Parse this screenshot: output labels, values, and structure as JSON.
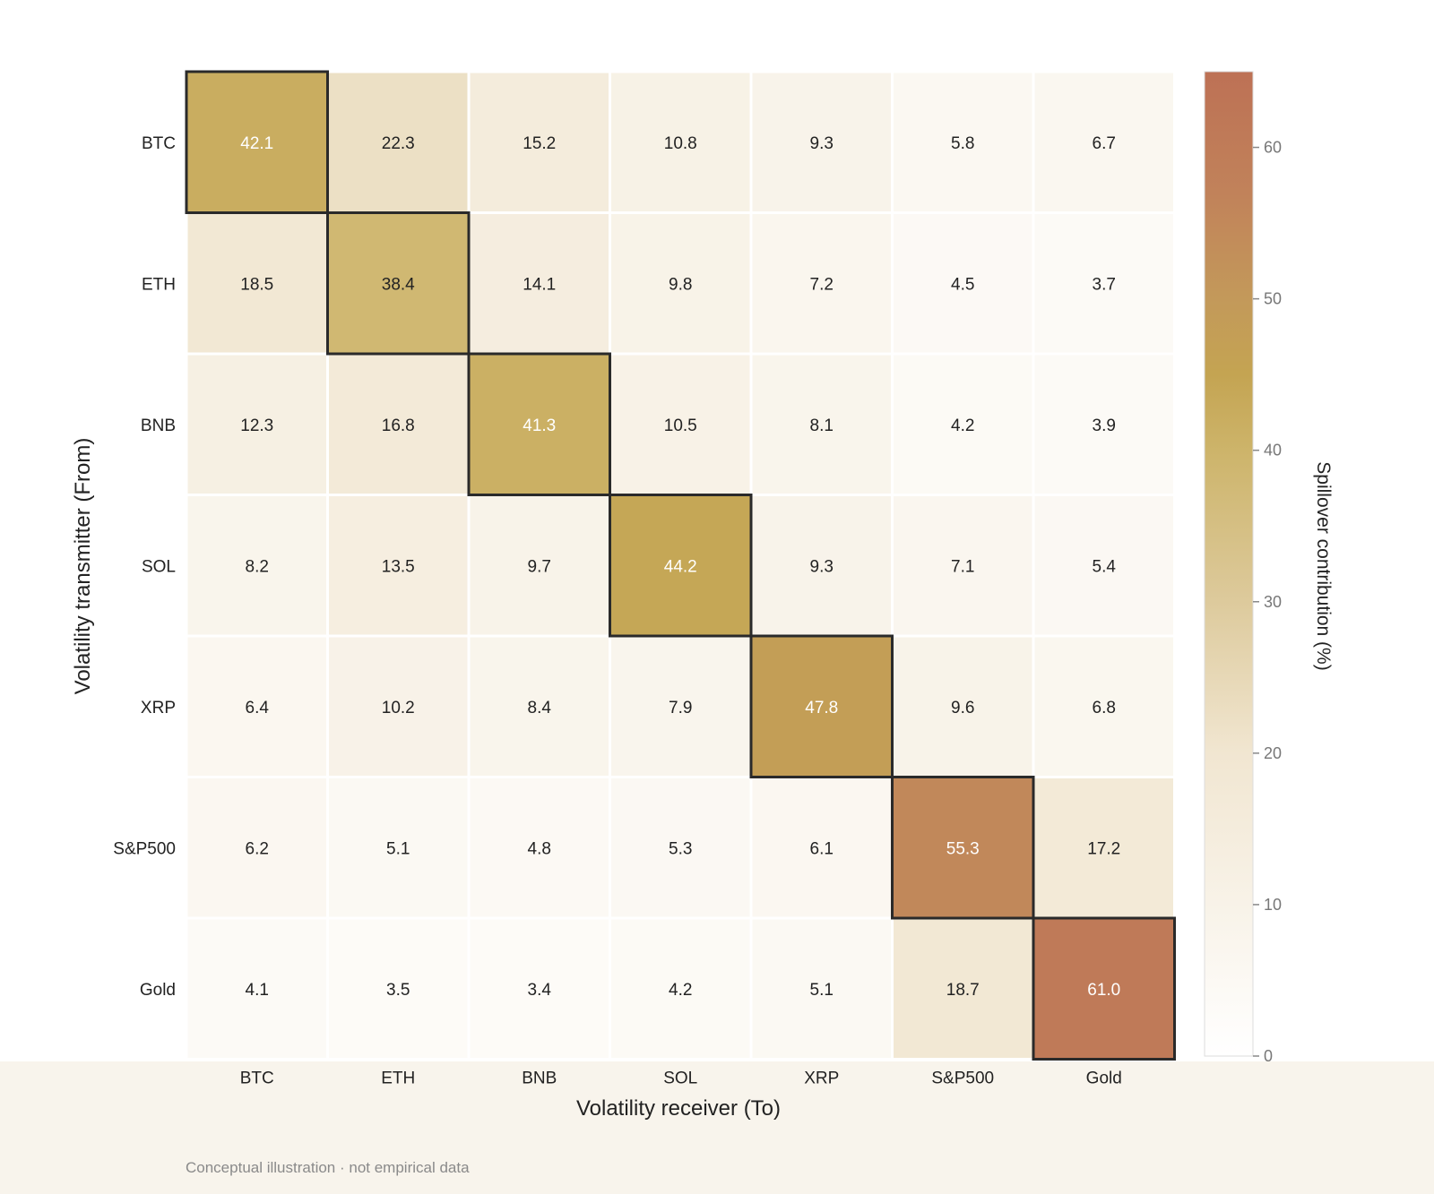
{
  "chart_data": {
    "type": "heatmap",
    "rows": [
      "BTC",
      "ETH",
      "BNB",
      "SOL",
      "XRP",
      "S&P500",
      "Gold"
    ],
    "columns": [
      "BTC",
      "ETH",
      "BNB",
      "SOL",
      "XRP",
      "S&P500",
      "Gold"
    ],
    "values": [
      [
        42.1,
        22.3,
        15.2,
        10.8,
        9.3,
        5.8,
        6.7
      ],
      [
        18.5,
        38.4,
        14.1,
        9.8,
        7.2,
        4.5,
        3.7
      ],
      [
        12.3,
        16.8,
        41.3,
        10.5,
        8.1,
        4.2,
        3.9
      ],
      [
        8.2,
        13.5,
        9.7,
        44.2,
        9.3,
        7.1,
        5.4
      ],
      [
        6.4,
        10.2,
        8.4,
        7.9,
        47.8,
        9.6,
        6.8
      ],
      [
        6.2,
        5.1,
        4.8,
        5.3,
        6.1,
        55.3,
        17.2
      ],
      [
        4.1,
        3.5,
        3.4,
        4.2,
        5.1,
        18.7,
        61.0
      ]
    ],
    "xlabel": "Volatility receiver (To)",
    "ylabel": "Volatility transmitter (From)",
    "colorbar": {
      "label": "Spillover contribution (%)",
      "range": [
        0,
        65
      ],
      "ticks": [
        0,
        10,
        20,
        30,
        40,
        50,
        60
      ],
      "stops": [
        {
          "value": 0,
          "color": "#ffffff"
        },
        {
          "value": 20,
          "color": "#f1e6d1"
        },
        {
          "value": 30,
          "color": "#ddca9c"
        },
        {
          "value": 40,
          "color": "#cdb46a"
        },
        {
          "value": 45,
          "color": "#c4a452"
        },
        {
          "value": 50,
          "color": "#c3995a"
        },
        {
          "value": 57,
          "color": "#c1825a"
        },
        {
          "value": 65,
          "color": "#bd7155"
        }
      ]
    },
    "diagonal_highlight": true,
    "grid": false
  },
  "footnote": "Conceptual illustration · not empirical data",
  "colors": {
    "cell_border": "#ffffff",
    "highlight_border": "#2a2a2a",
    "text_dark": "#222222",
    "text_light": "#ffffff",
    "bottom_band": "#f8f4ec"
  }
}
